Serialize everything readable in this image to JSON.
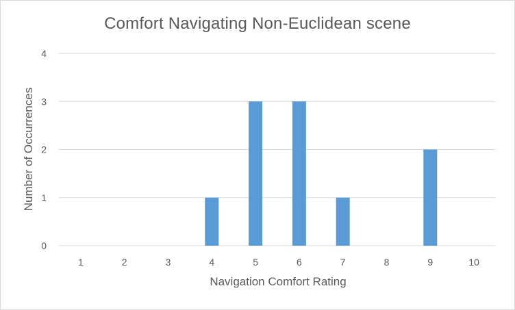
{
  "chart_data": {
    "type": "bar",
    "title": "Comfort Navigating Non-Euclidean scene",
    "xlabel": "Navigation Comfort Rating",
    "ylabel": "Number of Occurrences",
    "categories": [
      "1",
      "2",
      "3",
      "4",
      "5",
      "6",
      "7",
      "8",
      "9",
      "10"
    ],
    "values": [
      0,
      0,
      0,
      1,
      3,
      3,
      1,
      0,
      2,
      0
    ],
    "ylim": [
      0,
      4
    ],
    "yticks": [
      "0",
      "1",
      "2",
      "3",
      "4"
    ],
    "grid": true,
    "bar_color": "#5b9bd5",
    "grid_color": "#d9d9d9"
  }
}
